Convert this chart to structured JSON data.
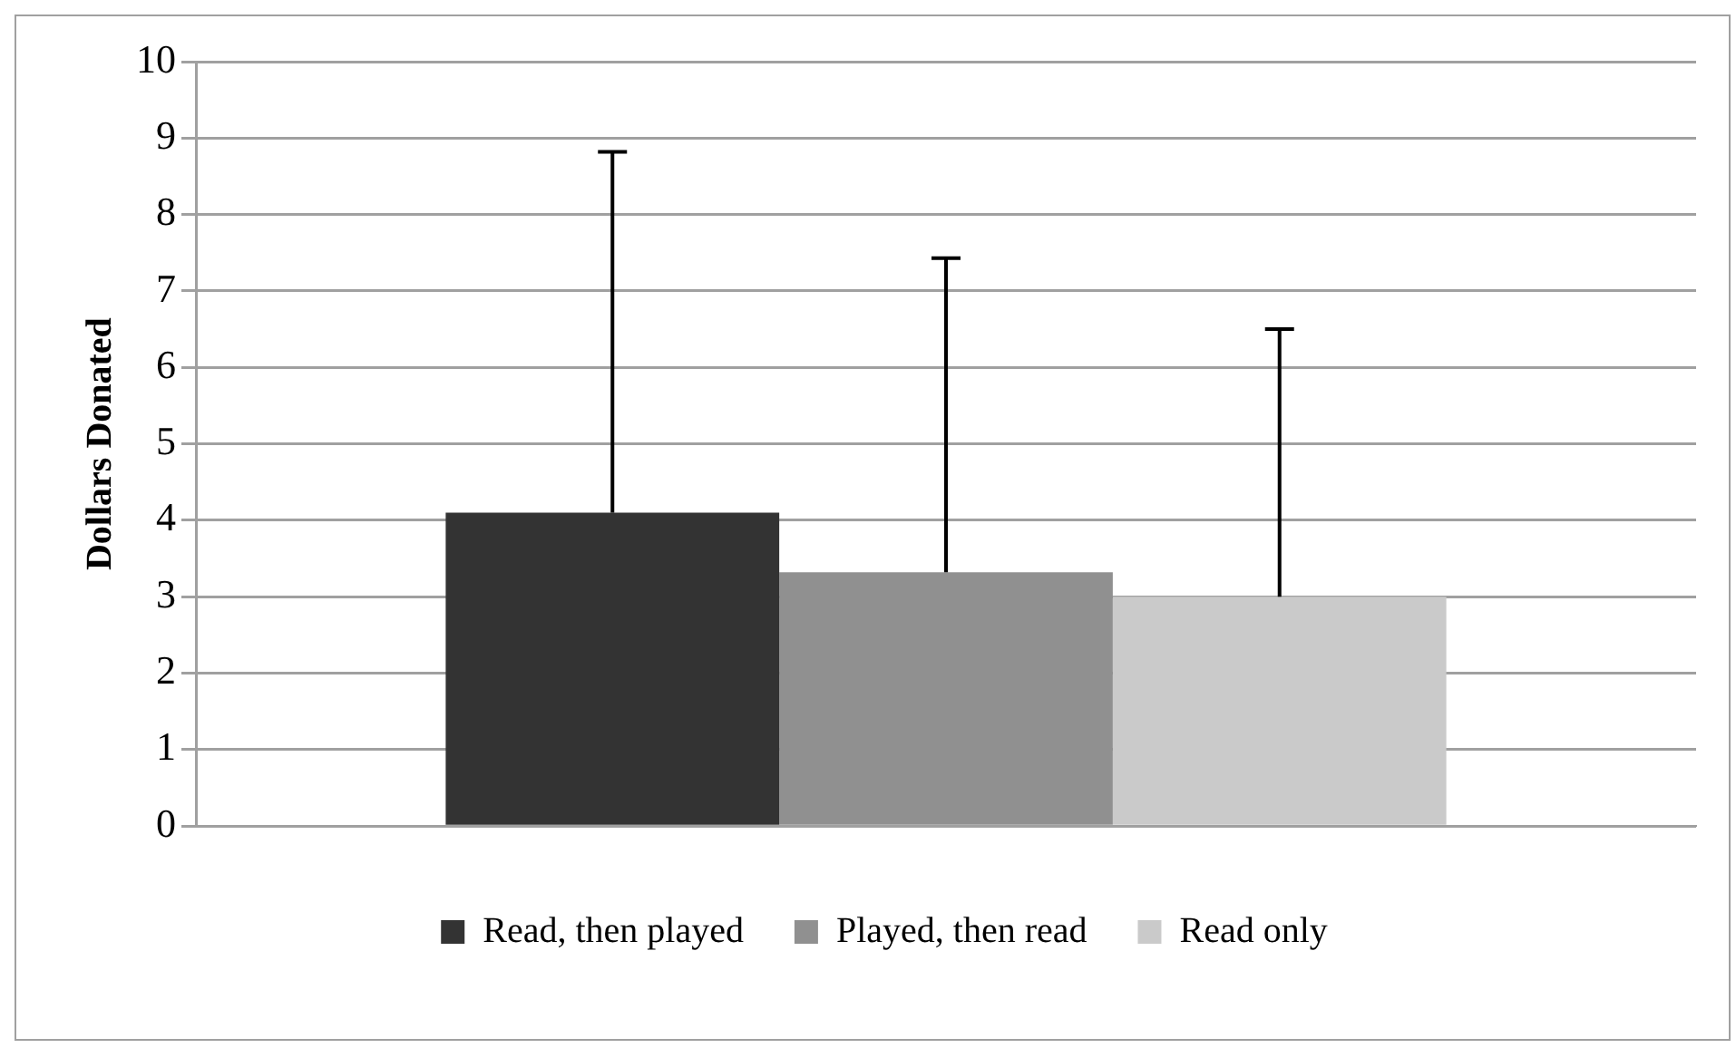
{
  "chart_data": {
    "type": "bar",
    "ylabel": "Dollars Donated",
    "categories": [
      null
    ],
    "series": [
      {
        "name": "Read, then played",
        "color": "#333333",
        "values": [
          4.1
        ],
        "errors": [
          [
            4.1,
            8.82
          ]
        ]
      },
      {
        "name": "Played, then read",
        "color": "#909090",
        "values": [
          3.32
        ],
        "errors": [
          [
            3.32,
            7.43
          ]
        ]
      },
      {
        "name": "Read only",
        "color": "#cacaca",
        "values": [
          3.0
        ],
        "errors": [
          [
            3.0,
            6.5
          ]
        ]
      }
    ],
    "ylim": [
      0,
      10
    ],
    "yticks": [
      0,
      1,
      2,
      3,
      4,
      5,
      6,
      7,
      8,
      9,
      10
    ],
    "grid": "y",
    "legend": "bottom"
  }
}
